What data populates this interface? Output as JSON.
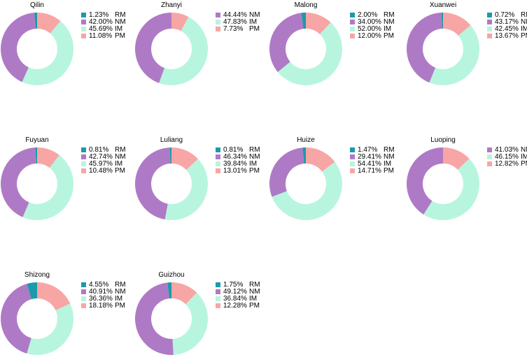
{
  "colors": {
    "RM": "#1b9aaa",
    "NM": "#af7ac5",
    "IM": "#b8f5df",
    "PM": "#f8a5a5"
  },
  "chart_data": [
    {
      "type": "pie",
      "title": "Qilin",
      "categories": [
        "RM",
        "NM",
        "IM",
        "PM"
      ],
      "values": [
        1.23,
        42.0,
        45.69,
        11.08
      ],
      "labels": [
        "1.23%",
        "42.00%",
        "45.69%",
        "11.08%"
      ]
    },
    {
      "type": "pie",
      "title": "Zhanyi",
      "categories": [
        "NM",
        "IM",
        "PM"
      ],
      "values": [
        44.44,
        47.83,
        7.73
      ],
      "labels": [
        "44.44%",
        "47.83%",
        "7.73%"
      ]
    },
    {
      "type": "pie",
      "title": "Malong",
      "categories": [
        "RM",
        "NM",
        "IM",
        "PM"
      ],
      "values": [
        2.0,
        34.0,
        52.0,
        12.0
      ],
      "labels": [
        "2.00%",
        "34.00%",
        "52.00%",
        "12.00%"
      ]
    },
    {
      "type": "pie",
      "title": "Xuanwei",
      "categories": [
        "RM",
        "NM",
        "IM",
        "PM"
      ],
      "values": [
        0.72,
        43.17,
        42.45,
        13.67
      ],
      "labels": [
        "0.72%",
        "43.17%",
        "42.45%",
        "13.67%"
      ]
    },
    {
      "type": "pie",
      "title": "Fuyuan",
      "categories": [
        "RM",
        "NM",
        "IM",
        "PM"
      ],
      "values": [
        0.81,
        42.74,
        45.97,
        10.48
      ],
      "labels": [
        "0.81%",
        "42.74%",
        "45.97%",
        "10.48%"
      ]
    },
    {
      "type": "pie",
      "title": "Luliang",
      "categories": [
        "RM",
        "NM",
        "IM",
        "PM"
      ],
      "values": [
        0.81,
        46.34,
        39.84,
        13.01
      ],
      "labels": [
        "0.81%",
        "46.34%",
        "39.84%",
        "13.01%"
      ]
    },
    {
      "type": "pie",
      "title": "Huize",
      "categories": [
        "RM",
        "NM",
        "IM",
        "PM"
      ],
      "values": [
        1.47,
        29.41,
        54.41,
        14.71
      ],
      "labels": [
        "1.47%",
        "29.41%",
        "54.41%",
        "14.71%"
      ]
    },
    {
      "type": "pie",
      "title": "Luoping",
      "categories": [
        "NM",
        "IM",
        "PM"
      ],
      "values": [
        41.03,
        46.15,
        12.82
      ],
      "labels": [
        "41.03%",
        "46.15%",
        "12.82%"
      ]
    },
    {
      "type": "pie",
      "title": "Shizong",
      "categories": [
        "RM",
        "NM",
        "IM",
        "PM"
      ],
      "values": [
        4.55,
        40.91,
        36.36,
        18.18
      ],
      "labels": [
        "4.55%",
        "40.91%",
        "36.36%",
        "18.18%"
      ]
    },
    {
      "type": "pie",
      "title": "Guizhou",
      "categories": [
        "RM",
        "NM",
        "IM",
        "PM"
      ],
      "values": [
        1.75,
        49.12,
        36.84,
        12.28
      ],
      "labels": [
        "1.75%",
        "49.12%",
        "36.84%",
        "12.28%"
      ]
    }
  ]
}
